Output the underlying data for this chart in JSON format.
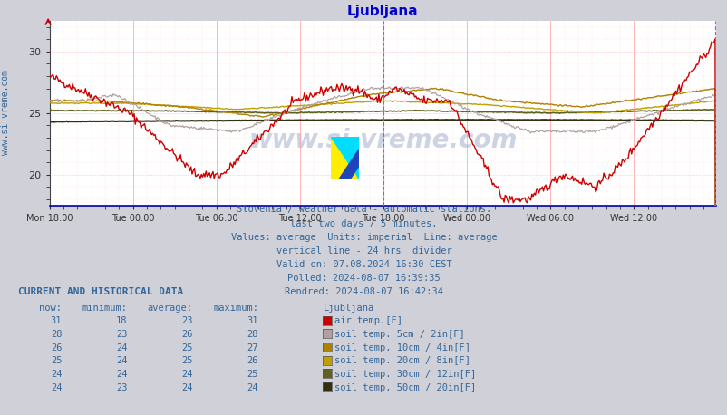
{
  "title": "Ljubljana",
  "title_color": "#0000cc",
  "bg_color": "#d0d0d8",
  "plot_bg_color": "#ffffff",
  "grid_color_major": "#ff9999",
  "grid_color_minor": "#ffcccc",
  "xlabel_ticks": [
    "Mon 18:00",
    "Tue 00:00",
    "Tue 06:00",
    "Tue 12:00",
    "Tue 18:00",
    "Wed 00:00",
    "Wed 06:00",
    "Wed 12:00"
  ],
  "ylim_low": 17.5,
  "ylim_high": 32.5,
  "yticks": [
    20,
    25,
    30
  ],
  "n_points": 576,
  "text_lines": [
    "Slovenia / weather data - automatic stations.",
    "last two days / 5 minutes.",
    "Values: average  Units: imperial  Line: average",
    "vertical line - 24 hrs  divider",
    "Valid on: 07.08.2024 16:30 CEST",
    "Polled: 2024-08-07 16:39:35",
    "Rendred: 2024-08-07 16:42:34"
  ],
  "watermark": "www.si-vreme.com",
  "series_colors": {
    "air_temp": "#cc0000",
    "soil_5cm": "#b0a0a0",
    "soil_10cm": "#b08000",
    "soil_20cm": "#c0a000",
    "soil_30cm": "#606020",
    "soil_50cm": "#303010"
  },
  "series_lw": {
    "air_temp": 1.0,
    "soil_5cm": 0.9,
    "soil_10cm": 1.0,
    "soil_20cm": 1.0,
    "soil_30cm": 1.2,
    "soil_50cm": 1.5
  },
  "table_header": "CURRENT AND HISTORICAL DATA",
  "table_cols": [
    "now:",
    "minimum:",
    "average:",
    "maximum:",
    "Ljubljana"
  ],
  "table_rows": [
    [
      31,
      18,
      23,
      31,
      "air temp.[F]",
      "#cc0000"
    ],
    [
      28,
      23,
      26,
      28,
      "soil temp. 5cm / 2in[F]",
      "#b0a0a0"
    ],
    [
      26,
      24,
      25,
      27,
      "soil temp. 10cm / 4in[F]",
      "#b08000"
    ],
    [
      25,
      24,
      25,
      26,
      "soil temp. 20cm / 8in[F]",
      "#c0a000"
    ],
    [
      24,
      24,
      24,
      25,
      "soil temp. 30cm / 12in[F]",
      "#606020"
    ],
    [
      24,
      23,
      24,
      24,
      "soil temp. 50cm / 20in[F]",
      "#303010"
    ]
  ],
  "text_color": "#336699",
  "table_color": "#336699"
}
